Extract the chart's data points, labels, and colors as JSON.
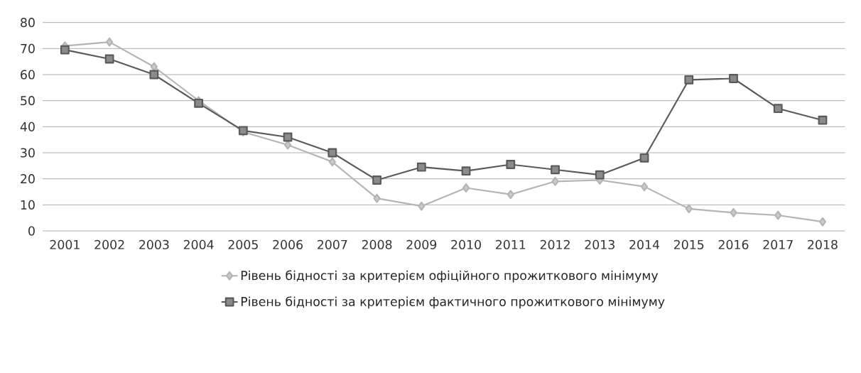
{
  "chart_data": {
    "type": "line",
    "categories": [
      "2001",
      "2002",
      "2003",
      "2004",
      "2005",
      "2006",
      "2007",
      "2008",
      "2009",
      "2010",
      "2011",
      "2012",
      "2013",
      "2014",
      "2015",
      "2016",
      "2017",
      "2018"
    ],
    "series": [
      {
        "name": "Рівень бідності за критерієм офіційного прожиткового мінімуму",
        "color": "#b4b4b4",
        "marker": "diamond",
        "values": [
          71,
          72.5,
          63,
          50,
          38,
          33,
          26.5,
          12.5,
          9.5,
          16.5,
          14,
          19,
          19.5,
          17,
          8.5,
          7,
          6,
          3.5
        ]
      },
      {
        "name": "Рівень бідності за критерієм фактичного прожиткового мінімуму",
        "color": "#5a5a5a",
        "marker": "square",
        "values": [
          69.5,
          66,
          60,
          49,
          38.5,
          36,
          30,
          19.5,
          24.5,
          23,
          25.5,
          23.5,
          21.5,
          28,
          58,
          58.5,
          47,
          42.5
        ]
      }
    ],
    "ylim": [
      0,
      80
    ],
    "yticks": [
      0,
      10,
      20,
      30,
      40,
      50,
      60,
      70,
      80
    ],
    "grid": "y",
    "legend": "bottom",
    "line_style": "solid"
  }
}
